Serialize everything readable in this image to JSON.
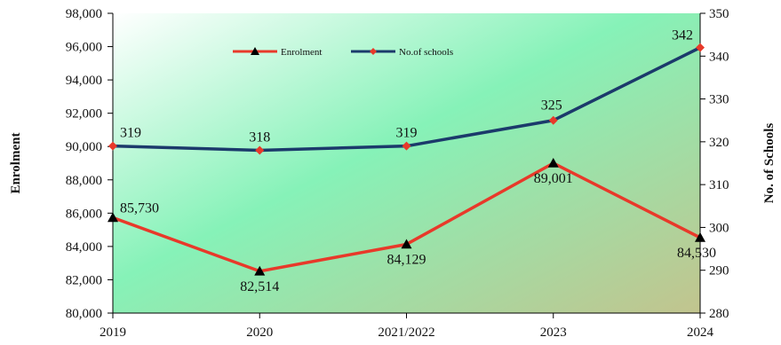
{
  "chart_data": {
    "type": "line",
    "categories": [
      "2019",
      "2020",
      "2021/2022",
      "2023",
      "2024"
    ],
    "series": [
      {
        "name": "Enrolment",
        "axis": "left",
        "values": [
          85730,
          82514,
          84129,
          89001,
          84530
        ],
        "labels": [
          "85,730",
          "82,514",
          "84,129",
          "89,001",
          "84,530"
        ],
        "color": "#e8392a",
        "marker_color": "#000000",
        "marker": "triangle"
      },
      {
        "name": "No.of schools",
        "axis": "right",
        "values": [
          319,
          318,
          319,
          325,
          342
        ],
        "labels": [
          "319",
          "318",
          "319",
          "325",
          "342"
        ],
        "color": "#1b3a6b",
        "marker_color": "#e8392a",
        "marker": "diamond"
      }
    ],
    "y_left": {
      "label": "Enrolment",
      "ylim": [
        80000,
        98000
      ],
      "ticks": [
        80000,
        82000,
        84000,
        86000,
        88000,
        90000,
        92000,
        94000,
        96000,
        98000
      ],
      "tick_labels": [
        "80,000",
        "82,000",
        "84,000",
        "86,000",
        "88,000",
        "90,000",
        "92,000",
        "94,000",
        "96,000",
        "98,000"
      ]
    },
    "y_right": {
      "label": "No. of Schools",
      "ylim": [
        280,
        350
      ],
      "ticks": [
        280,
        290,
        300,
        310,
        320,
        330,
        340,
        350
      ],
      "tick_labels": [
        "280",
        "290",
        "300",
        "310",
        "320",
        "330",
        "340",
        "350"
      ]
    },
    "grid": false,
    "legend": "top-center",
    "background_gradient": [
      "#ffffff",
      "#86f2b8",
      "#c2c48e"
    ]
  }
}
